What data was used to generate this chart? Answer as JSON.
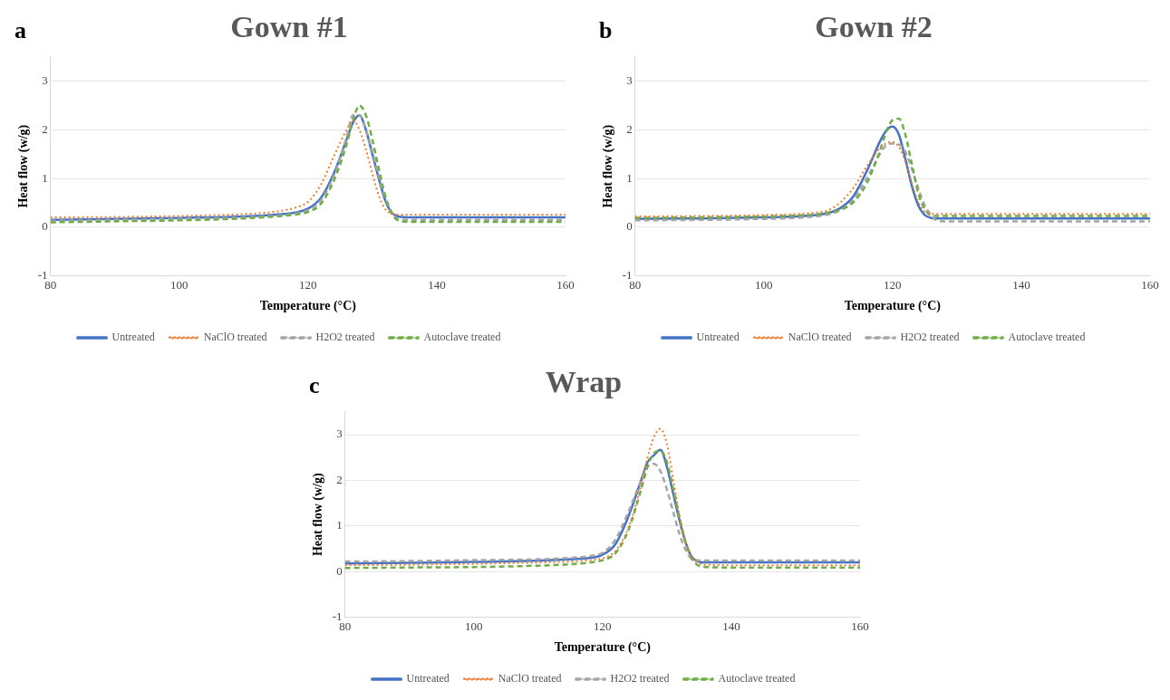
{
  "chart_data": [
    {
      "type": "line",
      "title": "Gown #1",
      "annotations": [
        "a"
      ],
      "xlabel": "Temperature (°C)",
      "ylabel": "Heat flow (w/g)",
      "xlim": [
        80,
        160
      ],
      "xticks": [
        80,
        100,
        120,
        140,
        160
      ],
      "ylim": [
        -1,
        3.5
      ],
      "yticks": [
        -1,
        0,
        1,
        2,
        3
      ],
      "grid": "y",
      "legend": "bottom",
      "marker": "none",
      "x": [
        80,
        90,
        100,
        110,
        115,
        118,
        120,
        122,
        124,
        126,
        127,
        128,
        129,
        130,
        131,
        132,
        133,
        134,
        136,
        140,
        150,
        160
      ],
      "series": [
        {
          "name": "Untreated",
          "color": "#4472c4",
          "line_style": "solid",
          "values": [
            0.15,
            0.17,
            0.19,
            0.22,
            0.26,
            0.3,
            0.38,
            0.6,
            1.1,
            1.8,
            2.15,
            2.3,
            2.0,
            1.5,
            1.0,
            0.55,
            0.3,
            0.22,
            0.2,
            0.2,
            0.2,
            0.2
          ]
        },
        {
          "name": "NaClO treated",
          "color": "#ed7d31",
          "line_style": "dotted",
          "values": [
            0.2,
            0.21,
            0.23,
            0.27,
            0.32,
            0.4,
            0.52,
            0.87,
            1.45,
            2.0,
            2.2,
            2.0,
            1.6,
            1.1,
            0.65,
            0.37,
            0.28,
            0.26,
            0.26,
            0.26,
            0.26,
            0.26
          ]
        },
        {
          "name": "H2O2 treated",
          "color": "#a5a5a5",
          "line_style": "dashed",
          "values": [
            0.13,
            0.15,
            0.17,
            0.2,
            0.24,
            0.28,
            0.35,
            0.55,
            1.05,
            1.85,
            2.3,
            2.3,
            2.0,
            1.55,
            1.05,
            0.6,
            0.3,
            0.17,
            0.15,
            0.15,
            0.15,
            0.15
          ]
        },
        {
          "name": "Autoclave treated",
          "color": "#70ad47",
          "line_style": "dashed",
          "values": [
            0.1,
            0.12,
            0.14,
            0.18,
            0.22,
            0.26,
            0.31,
            0.48,
            0.95,
            1.7,
            2.2,
            2.5,
            2.3,
            1.8,
            1.2,
            0.65,
            0.28,
            0.14,
            0.11,
            0.11,
            0.11,
            0.11
          ]
        }
      ]
    },
    {
      "type": "line",
      "title": "Gown #2",
      "annotations": [
        "b"
      ],
      "xlabel": "Temperature (°C)",
      "ylabel": "Heat flow (w/g)",
      "xlim": [
        80,
        160
      ],
      "xticks": [
        80,
        100,
        120,
        140,
        160
      ],
      "ylim": [
        -1,
        3.5
      ],
      "yticks": [
        -1,
        0,
        1,
        2,
        3
      ],
      "grid": "y",
      "legend": "bottom",
      "marker": "none",
      "x": [
        80,
        90,
        100,
        105,
        108,
        110,
        112,
        114,
        116,
        117,
        118,
        119,
        120,
        121,
        122,
        123,
        124,
        125,
        126,
        127,
        128,
        130,
        140,
        150,
        160
      ],
      "series": [
        {
          "name": "Untreated",
          "color": "#4472c4",
          "line_style": "solid",
          "values": [
            0.17,
            0.18,
            0.2,
            0.22,
            0.25,
            0.29,
            0.4,
            0.65,
            1.15,
            1.45,
            1.75,
            1.98,
            2.07,
            1.9,
            1.4,
            0.85,
            0.45,
            0.25,
            0.19,
            0.18,
            0.18,
            0.18,
            0.18,
            0.18,
            0.18
          ]
        },
        {
          "name": "NaClO treated",
          "color": "#ed7d31",
          "line_style": "dotted",
          "values": [
            0.22,
            0.23,
            0.25,
            0.27,
            0.3,
            0.35,
            0.52,
            0.82,
            1.25,
            1.45,
            1.62,
            1.72,
            1.75,
            1.65,
            1.35,
            0.9,
            0.52,
            0.32,
            0.27,
            0.27,
            0.27,
            0.27,
            0.27,
            0.27,
            0.27
          ]
        },
        {
          "name": "H2O2 treated",
          "color": "#a5a5a5",
          "line_style": "dashed",
          "values": [
            0.14,
            0.15,
            0.17,
            0.19,
            0.22,
            0.26,
            0.36,
            0.58,
            1.0,
            1.25,
            1.5,
            1.68,
            1.72,
            1.7,
            1.55,
            1.2,
            0.8,
            0.45,
            0.25,
            0.13,
            0.12,
            0.12,
            0.12,
            0.12,
            0.12
          ]
        },
        {
          "name": "Autoclave treated",
          "color": "#70ad47",
          "line_style": "dashed",
          "values": [
            0.19,
            0.2,
            0.22,
            0.24,
            0.26,
            0.3,
            0.36,
            0.52,
            0.9,
            1.2,
            1.55,
            1.95,
            2.2,
            2.23,
            1.9,
            1.3,
            0.7,
            0.38,
            0.24,
            0.23,
            0.23,
            0.23,
            0.23,
            0.23,
            0.23
          ]
        }
      ]
    },
    {
      "type": "line",
      "title": "Wrap",
      "annotations": [
        "c"
      ],
      "xlabel": "Temperature (°C)",
      "ylabel": "Heat flow (w/g)",
      "xlim": [
        80,
        160
      ],
      "xticks": [
        80,
        100,
        120,
        140,
        160
      ],
      "ylim": [
        -1,
        3.5
      ],
      "yticks": [
        -1,
        0,
        1,
        2,
        3
      ],
      "grid": "y",
      "legend": "bottom",
      "marker": "none",
      "x": [
        80,
        90,
        100,
        110,
        115,
        118,
        120,
        122,
        124,
        126,
        127,
        128,
        129,
        130,
        131,
        132,
        133,
        134,
        136,
        140,
        150,
        160
      ],
      "series": [
        {
          "name": "Untreated",
          "color": "#4472c4",
          "line_style": "solid",
          "values": [
            0.18,
            0.19,
            0.21,
            0.24,
            0.27,
            0.3,
            0.37,
            0.6,
            1.2,
            2.0,
            2.4,
            2.55,
            2.67,
            2.3,
            1.7,
            1.1,
            0.6,
            0.3,
            0.2,
            0.2,
            0.2,
            0.2
          ]
        },
        {
          "name": "NaClO treated",
          "color": "#ed7d31",
          "line_style": "dotted",
          "values": [
            0.14,
            0.15,
            0.17,
            0.2,
            0.22,
            0.25,
            0.29,
            0.45,
            0.95,
            1.9,
            2.5,
            2.95,
            3.13,
            2.8,
            2.0,
            1.2,
            0.6,
            0.3,
            0.15,
            0.14,
            0.14,
            0.14
          ]
        },
        {
          "name": "H2O2 treated",
          "color": "#a5a5a5",
          "line_style": "dashed",
          "values": [
            0.22,
            0.23,
            0.25,
            0.27,
            0.3,
            0.34,
            0.41,
            0.7,
            1.3,
            2.0,
            2.3,
            2.36,
            2.2,
            1.8,
            1.3,
            0.8,
            0.45,
            0.27,
            0.24,
            0.24,
            0.24,
            0.24
          ]
        },
        {
          "name": "Autoclave treated",
          "color": "#70ad47",
          "line_style": "dashed",
          "values": [
            0.08,
            0.09,
            0.1,
            0.13,
            0.16,
            0.2,
            0.25,
            0.4,
            0.9,
            1.8,
            2.3,
            2.6,
            2.65,
            2.4,
            1.8,
            1.15,
            0.6,
            0.25,
            0.1,
            0.09,
            0.09,
            0.09
          ]
        }
      ]
    }
  ]
}
